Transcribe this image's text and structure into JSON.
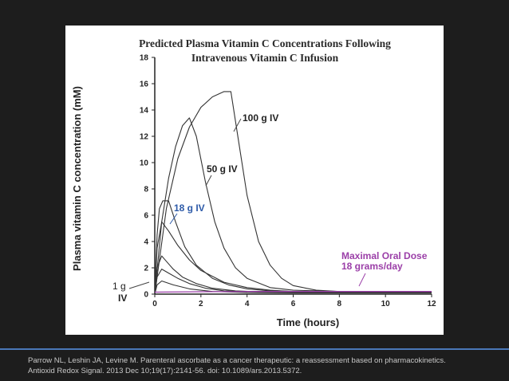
{
  "slide": {
    "citation_line1": "Parrow NL, Leshin JA, Levine M. Parenteral ascorbate as a cancer therapeutic: a reassessment based on pharmacokinetics.",
    "citation_line2": "Antioxid Redox Signal. 2013 Dec 10;19(17):2141-56. doi: 10.1089/ars.2013.5372.",
    "background_color": "#1d1d1d",
    "accent_color": "#4a78b8"
  },
  "chart_data": {
    "type": "line",
    "title_line1": "Predicted Plasma Vitamin C Concentrations Following",
    "title_line2": "Intravenous Vitamin C Infusion",
    "xlabel": "Time (hours)",
    "ylabel": "Plasma vitamin C concentration (mM)",
    "xlim": [
      0,
      12
    ],
    "ylim": [
      0,
      18
    ],
    "xticks": [
      "0",
      "2",
      "4",
      "6",
      "8",
      "10",
      "12"
    ],
    "yticks": [
      "0",
      "2",
      "4",
      "6",
      "8",
      "10",
      "12",
      "14",
      "16",
      "18"
    ],
    "grid": false,
    "series": [
      {
        "name": "100 g IV",
        "color": "#333333",
        "x": [
          0,
          0.5,
          1.0,
          1.5,
          2.0,
          2.5,
          3.0,
          3.3,
          3.6,
          4.0,
          4.5,
          5.0,
          5.5,
          6.0,
          7.0,
          8.0,
          10.0,
          12.0
        ],
        "y": [
          0,
          6.5,
          10.3,
          12.7,
          14.2,
          15.0,
          15.4,
          15.4,
          12.0,
          7.5,
          4.0,
          2.2,
          1.2,
          0.65,
          0.3,
          0.2,
          0.15,
          0.15
        ]
      },
      {
        "name": "50 g IV",
        "color": "#333333",
        "x": [
          0,
          0.3,
          0.6,
          0.9,
          1.2,
          1.5,
          1.8,
          2.2,
          2.6,
          3.0,
          3.5,
          4.0,
          5.0,
          6.0,
          8.0,
          12.0
        ],
        "y": [
          0,
          5.5,
          8.8,
          11.2,
          12.8,
          13.4,
          12.0,
          8.5,
          5.5,
          3.5,
          2.0,
          1.2,
          0.5,
          0.3,
          0.2,
          0.15
        ]
      },
      {
        "name": "18 g IV",
        "color": "#333333",
        "x": [
          0,
          0.1,
          0.2,
          0.35,
          0.6,
          0.9,
          1.3,
          1.8,
          2.5,
          3.2,
          4.0,
          5.0,
          6.0,
          8.0,
          12.0
        ],
        "y": [
          0,
          4.5,
          6.5,
          7.1,
          7.1,
          5.5,
          3.6,
          2.2,
          1.2,
          0.7,
          0.4,
          0.25,
          0.2,
          0.15,
          0.15
        ]
      },
      {
        "name": "",
        "color": "#333333",
        "x": [
          0,
          0.1,
          0.3,
          0.6,
          1.0,
          1.5,
          2.0,
          3.0,
          4.0,
          5.0,
          6.0,
          8.0,
          12.0
        ],
        "y": [
          0,
          3.5,
          5.5,
          4.8,
          3.7,
          2.6,
          1.8,
          0.9,
          0.5,
          0.3,
          0.2,
          0.15,
          0.15
        ]
      },
      {
        "name": "",
        "color": "#333333",
        "x": [
          0,
          0.1,
          0.3,
          0.5,
          0.8,
          1.2,
          1.8,
          2.5,
          3.5,
          5.0,
          7.0,
          12.0
        ],
        "y": [
          0,
          2.0,
          2.9,
          2.5,
          1.9,
          1.3,
          0.8,
          0.45,
          0.25,
          0.15,
          0.12,
          0.12
        ]
      },
      {
        "name": "",
        "color": "#333333",
        "x": [
          0,
          0.1,
          0.3,
          0.6,
          1.0,
          1.5,
          2.2,
          3.0,
          4.5,
          7.0,
          12.0
        ],
        "y": [
          0,
          1.3,
          1.9,
          1.6,
          1.2,
          0.8,
          0.45,
          0.25,
          0.15,
          0.12,
          0.12
        ]
      },
      {
        "name": "1 g IV",
        "color": "#333333",
        "x": [
          0,
          0.1,
          0.3,
          0.8,
          1.5,
          2.5,
          4.0,
          6.0,
          12.0
        ],
        "y": [
          0,
          0.7,
          1.0,
          0.7,
          0.4,
          0.2,
          0.12,
          0.1,
          0.1
        ]
      },
      {
        "name": "Maximal Oral Dose 18 grams/day",
        "color": "#9b3fa8",
        "x": [
          0,
          2,
          4,
          6,
          8,
          10,
          12
        ],
        "y": [
          0.15,
          0.18,
          0.2,
          0.2,
          0.2,
          0.2,
          0.2
        ]
      }
    ],
    "annotations": [
      {
        "text": "100 g IV",
        "color": "#222222"
      },
      {
        "text": "50 g IV",
        "color": "#222222"
      },
      {
        "text": "18 g IV",
        "color": "#2d5aa8"
      },
      {
        "text_line1": "1 g",
        "text_line2": "IV",
        "color": "#222222"
      },
      {
        "text_line1": "Maximal Oral Dose",
        "text_line2": "18 grams/day",
        "color": "#9b3fa8"
      }
    ]
  }
}
